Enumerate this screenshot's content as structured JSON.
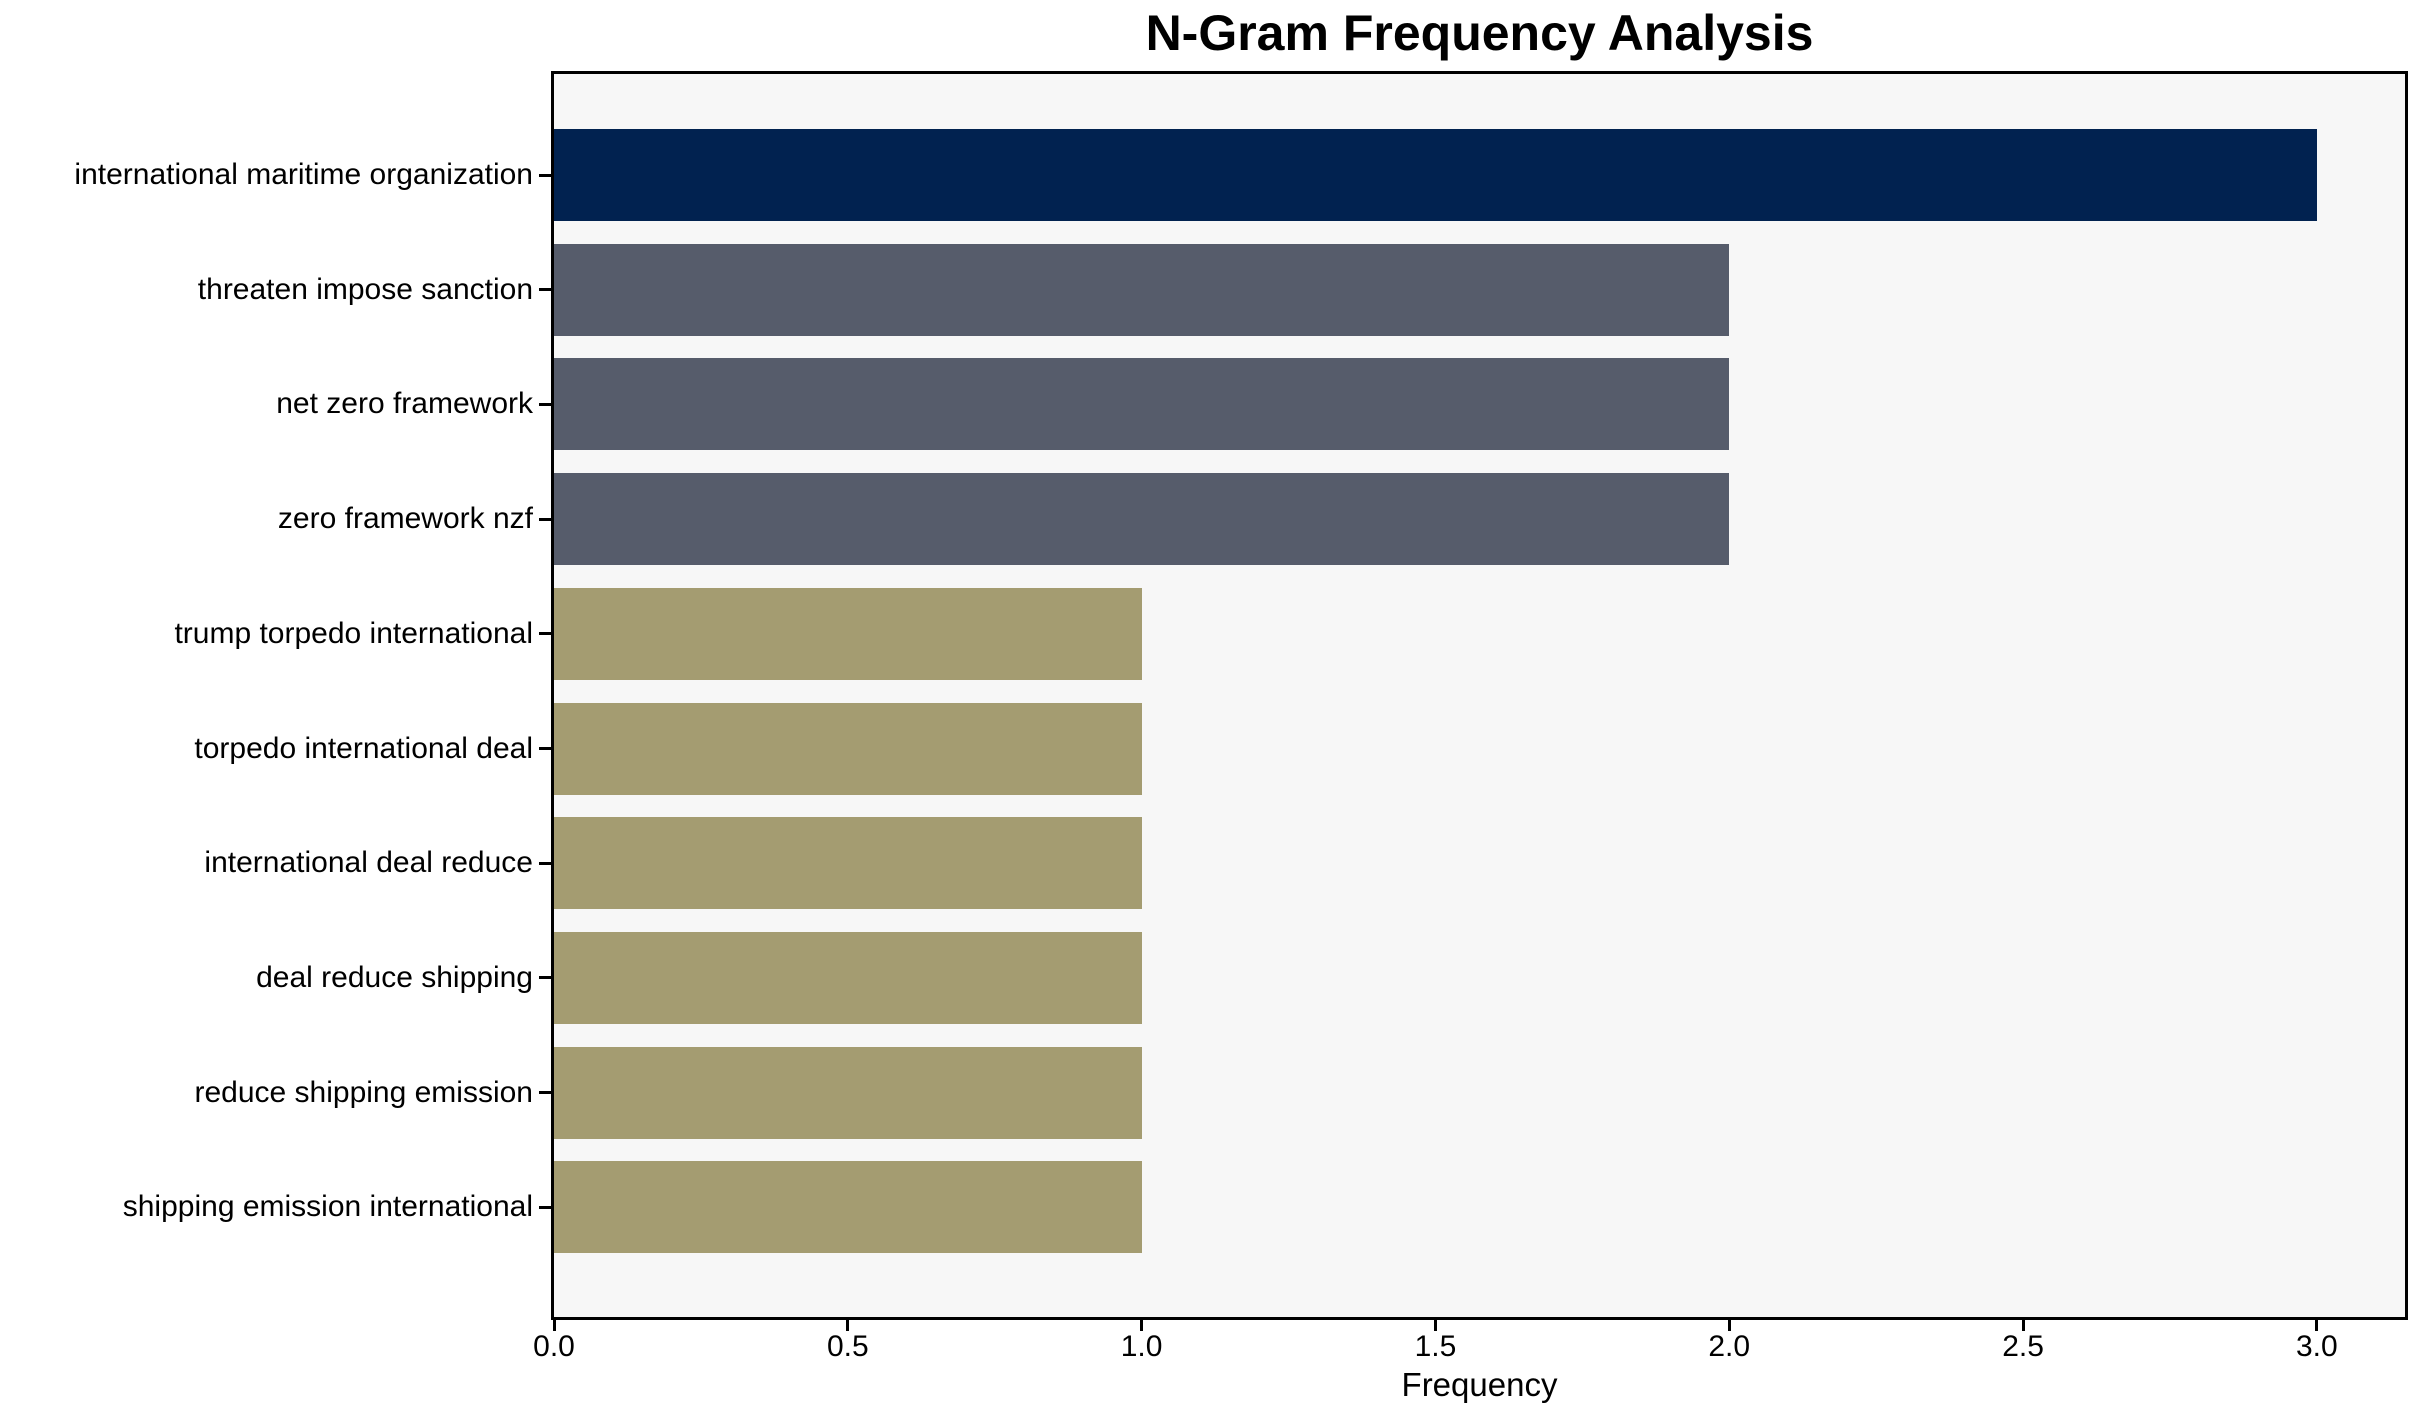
{
  "chart_data": {
    "type": "bar",
    "orientation": "horizontal",
    "title": "N-Gram Frequency Analysis",
    "xlabel": "Frequency",
    "ylabel": "",
    "categories": [
      "international maritime organization",
      "threaten impose sanction",
      "net zero framework",
      "zero framework nzf",
      "trump torpedo international",
      "torpedo international deal",
      "international deal reduce",
      "deal reduce shipping",
      "reduce shipping emission",
      "shipping emission international"
    ],
    "values": [
      3,
      2,
      2,
      2,
      1,
      1,
      1,
      1,
      1,
      1
    ],
    "bar_colors": [
      "#012250",
      "#565c6b",
      "#565c6b",
      "#565c6b",
      "#a49c71",
      "#a49c71",
      "#a49c71",
      "#a49c71",
      "#a49c71",
      "#a49c71"
    ],
    "xlim": [
      0,
      3.15
    ],
    "x_ticks": [
      "0.0",
      "0.5",
      "1.0",
      "1.5",
      "2.0",
      "2.5",
      "3.0"
    ],
    "grid": false,
    "legend": null,
    "colors": {
      "plot_background": "#f7f7f7",
      "figure_background": "#ffffff",
      "spine": "#000000",
      "text": "#000000"
    }
  }
}
